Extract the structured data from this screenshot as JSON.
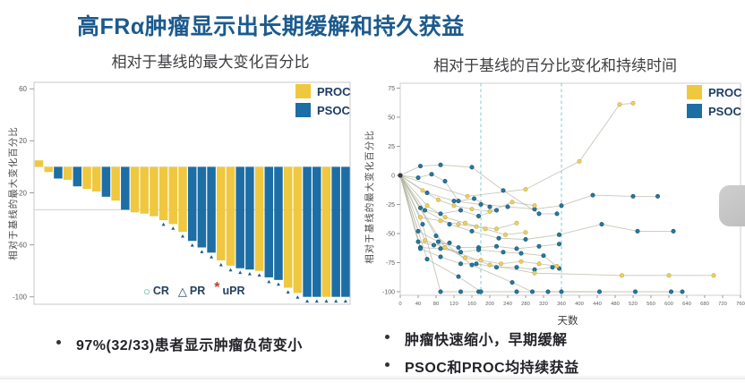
{
  "slide": {
    "title": "高FRα肿瘤显示出长期缓解和持久获益",
    "bullets_left": [
      "97%(32/33)患者显示肿瘤负荷变小"
    ],
    "bullets_right": [
      "肿瘤快速缩小，早期缓解",
      "PSOC和PROC均持续获益"
    ]
  },
  "colors": {
    "title_navy": "#1C5A8D",
    "proc_yellow": "#EFC83F",
    "psoc_blue": "#1C6EA4",
    "proc_point_fill": "#EAD06A",
    "proc_point_stroke": "#C9A83C",
    "psoc_point_fill": "#2679A1",
    "psoc_point_stroke": "#124C68",
    "spider_line": "#B3B5A2",
    "dashed_teal": "#8ED0D6",
    "axis_gray": "#9A9A9A",
    "tick_text": "#5c5c5c",
    "cr_teal": "#3FAE9E",
    "pr_navy": "#24415F",
    "upr_red": "#C03A2B",
    "ref_line": "#CFCFCF"
  },
  "chart_data": [
    {
      "type": "bar",
      "title": "相对于基线的最大变化百分比",
      "xlabel": "",
      "ylabel": "相对于基线的最大变化百分比",
      "ylim": [
        -105,
        65
      ],
      "yticks": [
        60,
        20,
        -20,
        -60,
        -100
      ],
      "reference_line": -33,
      "legend_position": "top-right",
      "legend": [
        {
          "label": "PROC",
          "group": "PROC"
        },
        {
          "label": "PSOC",
          "group": "PSOC"
        }
      ],
      "response_markers": [
        {
          "symbol": "○",
          "label": "CR"
        },
        {
          "symbol": "△",
          "label": "PR"
        },
        {
          "symbol": "*",
          "label": "uPR"
        }
      ],
      "bars": [
        {
          "value": 5,
          "group": "PROC"
        },
        {
          "value": -4,
          "group": "PROC"
        },
        {
          "value": -9,
          "group": "PSOC"
        },
        {
          "value": -10,
          "group": "PROC"
        },
        {
          "value": -15,
          "group": "PSOC"
        },
        {
          "value": -17,
          "group": "PROC"
        },
        {
          "value": -19,
          "group": "PROC"
        },
        {
          "value": -23,
          "group": "PSOC"
        },
        {
          "value": -26,
          "group": "PROC"
        },
        {
          "value": -33,
          "group": "PSOC"
        },
        {
          "value": -35,
          "group": "PROC"
        },
        {
          "value": -36,
          "group": "PROC"
        },
        {
          "value": -38,
          "group": "PROC"
        },
        {
          "value": -41,
          "group": "PROC"
        },
        {
          "value": -44,
          "group": "PROC"
        },
        {
          "value": -50,
          "group": "PROC"
        },
        {
          "value": -57,
          "group": "PSOC"
        },
        {
          "value": -62,
          "group": "PSOC"
        },
        {
          "value": -66,
          "group": "PSOC"
        },
        {
          "value": -72,
          "group": "PROC"
        },
        {
          "value": -76,
          "group": "PROC"
        },
        {
          "value": -78,
          "group": "PSOC"
        },
        {
          "value": -79,
          "group": "PSOC"
        },
        {
          "value": -80,
          "group": "PROC"
        },
        {
          "value": -85,
          "group": "PSOC"
        },
        {
          "value": -87,
          "group": "PSOC"
        },
        {
          "value": -93,
          "group": "PROC"
        },
        {
          "value": -97,
          "group": "PROC"
        },
        {
          "value": -100,
          "group": "PSOC"
        },
        {
          "value": -100,
          "group": "PSOC"
        },
        {
          "value": -100,
          "group": "PROC"
        },
        {
          "value": -100,
          "group": "PSOC"
        },
        {
          "value": -100,
          "group": "PSOC"
        }
      ]
    },
    {
      "type": "line",
      "title": "相对于基线的百分比变化和持续时间",
      "xlabel": "天数",
      "ylabel": "相对于基线的最大变化百分比",
      "xlim": [
        0,
        760
      ],
      "ylim": [
        -100,
        75
      ],
      "xticks": [
        0,
        40,
        80,
        120,
        160,
        200,
        240,
        280,
        320,
        360,
        400,
        440,
        480,
        520,
        560,
        600,
        640,
        680,
        720,
        760
      ],
      "yticks": [
        75,
        50,
        25,
        0,
        -25,
        -50,
        -75,
        -100
      ],
      "dashed_vlines_days": [
        180,
        360
      ],
      "legend_position": "top-right",
      "legend": [
        {
          "label": "PROC",
          "group": "PROC"
        },
        {
          "label": "PSOC",
          "group": "PSOC"
        }
      ],
      "series": [
        {
          "group": "PSOC",
          "points": [
            [
              0,
              0
            ],
            [
              45,
              8
            ],
            [
              90,
              9
            ],
            [
              160,
              7
            ],
            [
              230,
              -13
            ],
            [
              310,
              -33
            ],
            [
              350,
              -33
            ]
          ]
        },
        {
          "group": "PSOC",
          "points": [
            [
              0,
              0
            ],
            [
              40,
              -2
            ],
            [
              70,
              1
            ],
            [
              100,
              -5
            ],
            [
              130,
              -22
            ],
            [
              165,
              -20
            ],
            [
              200,
              -27
            ]
          ]
        },
        {
          "group": "PSOC",
          "points": [
            [
              0,
              0
            ],
            [
              60,
              -15
            ],
            [
              120,
              -22
            ],
            [
              180,
              -25
            ],
            [
              240,
              -27
            ],
            [
              300,
              -29
            ],
            [
              360,
              -26
            ],
            [
              430,
              -17
            ],
            [
              520,
              -18
            ],
            [
              575,
              -18
            ]
          ]
        },
        {
          "group": "PSOC",
          "points": [
            [
              0,
              0
            ],
            [
              55,
              -30
            ],
            [
              110,
              -42
            ],
            [
              160,
              -48
            ],
            [
              220,
              -54
            ],
            [
              280,
              -55
            ],
            [
              355,
              -51
            ],
            [
              450,
              -42
            ],
            [
              530,
              -48
            ],
            [
              610,
              -48
            ]
          ]
        },
        {
          "group": "PSOC",
          "points": [
            [
              0,
              0
            ],
            [
              45,
              -28
            ],
            [
              90,
              -33
            ],
            [
              135,
              -30
            ],
            [
              175,
              -35
            ],
            [
              215,
              -30
            ]
          ]
        },
        {
          "group": "PSOC",
          "points": [
            [
              0,
              0
            ],
            [
              40,
              -48
            ],
            [
              85,
              -57
            ],
            [
              130,
              -62
            ],
            [
              175,
              -62
            ],
            [
              215,
              -61
            ],
            [
              260,
              -63
            ],
            [
              310,
              -61
            ],
            [
              355,
              -59
            ]
          ]
        },
        {
          "group": "PSOC",
          "points": [
            [
              0,
              0
            ],
            [
              45,
              -62
            ],
            [
              90,
              -63
            ],
            [
              135,
              -66
            ],
            [
              175,
              -64
            ],
            [
              230,
              -66
            ],
            [
              270,
              -67
            ],
            [
              320,
              -69
            ],
            [
              355,
              -80
            ]
          ]
        },
        {
          "group": "PSOC",
          "points": [
            [
              0,
              0
            ],
            [
              45,
              -63
            ],
            [
              90,
              -70
            ],
            [
              135,
              -76
            ],
            [
              170,
              -76
            ],
            [
              215,
              -79
            ],
            [
              260,
              -79
            ],
            [
              300,
              -81
            ],
            [
              340,
              -79
            ]
          ]
        },
        {
          "group": "PSOC",
          "points": [
            [
              0,
              0
            ],
            [
              50,
              -42
            ],
            [
              90,
              -100
            ],
            [
              135,
              -100
            ],
            [
              175,
              -100
            ]
          ]
        },
        {
          "group": "PSOC",
          "points": [
            [
              0,
              0
            ],
            [
              60,
              -72
            ],
            [
              130,
              -87
            ],
            [
              180,
              -100
            ],
            [
              260,
              -100
            ],
            [
              330,
              -100
            ],
            [
              445,
              -100
            ]
          ]
        },
        {
          "group": "PSOC",
          "points": [
            [
              0,
              0
            ],
            [
              80,
              -52
            ],
            [
              160,
              -77
            ],
            [
              250,
              -92
            ],
            [
              295,
              -100
            ],
            [
              360,
              -100
            ],
            [
              525,
              -100
            ],
            [
              605,
              -100
            ],
            [
              630,
              -100
            ]
          ]
        },
        {
          "group": "PSOC",
          "points": [
            [
              0,
              0
            ],
            [
              40,
              -57
            ],
            [
              75,
              -60
            ],
            [
              110,
              -58
            ]
          ]
        },
        {
          "group": "PROC",
          "points": [
            [
              0,
              0
            ],
            [
              50,
              -13
            ],
            [
              85,
              -21
            ],
            [
              120,
              -26
            ],
            [
              160,
              -29
            ],
            [
              200,
              -31
            ],
            [
              250,
              -23
            ],
            [
              300,
              -26
            ]
          ]
        },
        {
          "group": "PROC",
          "points": [
            [
              0,
              0
            ],
            [
              45,
              -36
            ],
            [
              90,
              -39
            ],
            [
              130,
              -42
            ],
            [
              170,
              -44
            ],
            [
              215,
              -46
            ],
            [
              260,
              -41
            ]
          ]
        },
        {
          "group": "PROC",
          "points": [
            [
              0,
              0
            ],
            [
              55,
              -56
            ],
            [
              100,
              -62
            ],
            [
              145,
              -71
            ],
            [
              180,
              -73
            ],
            [
              225,
              -76
            ],
            [
              270,
              -74
            ],
            [
              310,
              -76
            ],
            [
              350,
              -78
            ]
          ]
        },
        {
          "group": "PROC",
          "points": [
            [
              0,
              0
            ],
            [
              60,
              -26
            ],
            [
              100,
              -36
            ],
            [
              145,
              -41
            ],
            [
              190,
              -46
            ],
            [
              235,
              -51
            ],
            [
              280,
              -49
            ]
          ]
        },
        {
          "group": "PROC",
          "points": [
            [
              0,
              0
            ],
            [
              150,
              -18
            ],
            [
              280,
              -12
            ],
            [
              400,
              12
            ],
            [
              490,
              61
            ],
            [
              520,
              62
            ]
          ]
        },
        {
          "group": "PROC",
          "points": [
            [
              0,
              0
            ],
            [
              100,
              -62
            ],
            [
              200,
              -77
            ],
            [
              300,
              -84
            ],
            [
              495,
              -86
            ],
            [
              600,
              -86
            ],
            [
              700,
              -86
            ]
          ]
        }
      ]
    }
  ]
}
